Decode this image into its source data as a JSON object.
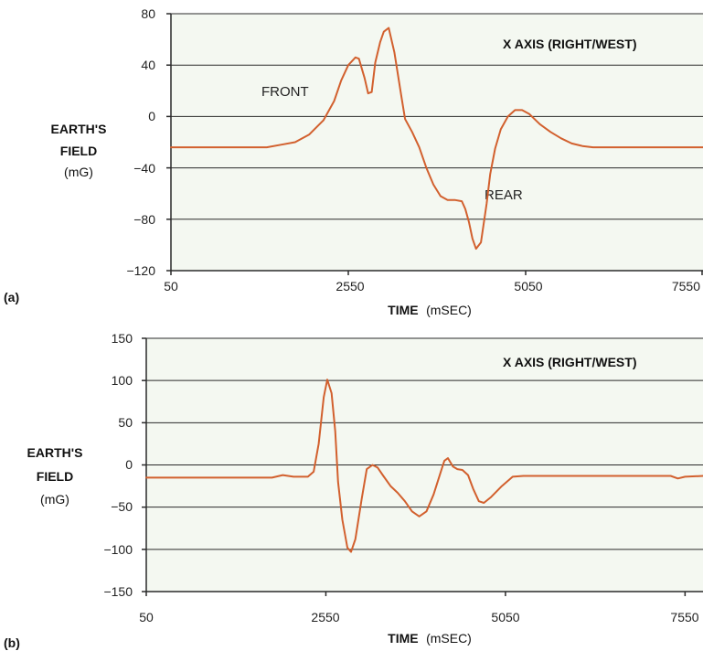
{
  "colors": {
    "trace": "#d2602e",
    "plot_bg": "#f4f8f1",
    "grid": "#2a2a2a"
  },
  "chart_data": [
    {
      "panel_label": "(a)",
      "type": "line",
      "title": "X AXIS (RIGHT/WEST)",
      "ylabel_lines": [
        "EARTH'S",
        "FIELD",
        "(mG)"
      ],
      "xlabel_bold": "TIME",
      "xlabel_unit": "(mSEC)",
      "xlim": [
        50,
        7550
      ],
      "ylim": [
        -120,
        80
      ],
      "xticks": [
        50,
        2550,
        5050,
        7550
      ],
      "xtick_labels": [
        "50",
        "2550",
        "5050",
        "7550"
      ],
      "yticks": [
        80,
        40,
        0,
        -40,
        -80,
        -120
      ],
      "ytick_labels": [
        "80",
        "40",
        "0",
        "−40",
        "−80",
        "−120"
      ],
      "grid": "horizontal",
      "annotations": [
        {
          "text": "FRONT",
          "x": 2040,
          "y": 18
        },
        {
          "text": "REAR",
          "x": 4370,
          "y": -62
        }
      ],
      "series": [
        {
          "points": [
            [
              50,
              -24
            ],
            [
              1400,
              -24
            ],
            [
              1600,
              -22
            ],
            [
              1800,
              -20
            ],
            [
              2000,
              -14
            ],
            [
              2200,
              -3
            ],
            [
              2350,
              12
            ],
            [
              2450,
              28
            ],
            [
              2550,
              40
            ],
            [
              2650,
              46
            ],
            [
              2700,
              45
            ],
            [
              2780,
              30
            ],
            [
              2830,
              18
            ],
            [
              2880,
              19
            ],
            [
              2930,
              42
            ],
            [
              3000,
              58
            ],
            [
              3050,
              66
            ],
            [
              3120,
              69
            ],
            [
              3200,
              50
            ],
            [
              3300,
              15
            ],
            [
              3350,
              -2
            ],
            [
              3450,
              -12
            ],
            [
              3550,
              -24
            ],
            [
              3650,
              -40
            ],
            [
              3750,
              -53
            ],
            [
              3850,
              -62
            ],
            [
              3950,
              -65
            ],
            [
              4050,
              -65
            ],
            [
              4150,
              -66
            ],
            [
              4200,
              -72
            ],
            [
              4250,
              -82
            ],
            [
              4300,
              -95
            ],
            [
              4350,
              -103
            ],
            [
              4420,
              -98
            ],
            [
              4500,
              -68
            ],
            [
              4550,
              -45
            ],
            [
              4620,
              -25
            ],
            [
              4700,
              -10
            ],
            [
              4800,
              0
            ],
            [
              4900,
              5
            ],
            [
              5000,
              5
            ],
            [
              5100,
              2
            ],
            [
              5250,
              -6
            ],
            [
              5400,
              -12
            ],
            [
              5550,
              -17
            ],
            [
              5700,
              -21
            ],
            [
              5850,
              -23
            ],
            [
              6000,
              -24
            ],
            [
              7550,
              -24
            ]
          ]
        }
      ]
    },
    {
      "panel_label": "(b)",
      "type": "line",
      "title": "X AXIS (RIGHT/WEST)",
      "ylabel_lines": [
        "EARTH'S",
        "FIELD",
        "(mG)"
      ],
      "xlabel_bold": "TIME",
      "xlabel_unit": "(mSEC)",
      "xlim": [
        50,
        7800
      ],
      "ylim": [
        -150,
        150
      ],
      "xticks": [
        50,
        2550,
        5050,
        7550
      ],
      "xtick_labels": [
        "50",
        "2550",
        "5050",
        "7550"
      ],
      "yticks": [
        150,
        100,
        50,
        0,
        -50,
        -100,
        -150
      ],
      "ytick_labels": [
        "150",
        "100",
        "50",
        "0",
        "−50",
        "−100",
        "−150"
      ],
      "grid": "horizontal",
      "series": [
        {
          "points": [
            [
              50,
              -15
            ],
            [
              1800,
              -15
            ],
            [
              1950,
              -12
            ],
            [
              2100,
              -14
            ],
            [
              2300,
              -14
            ],
            [
              2380,
              -8
            ],
            [
              2450,
              25
            ],
            [
              2520,
              80
            ],
            [
              2570,
              101
            ],
            [
              2630,
              85
            ],
            [
              2680,
              40
            ],
            [
              2720,
              -20
            ],
            [
              2780,
              -65
            ],
            [
              2850,
              -98
            ],
            [
              2900,
              -103
            ],
            [
              2960,
              -88
            ],
            [
              3050,
              -40
            ],
            [
              3120,
              -5
            ],
            [
              3200,
              0
            ],
            [
              3270,
              -3
            ],
            [
              3350,
              -13
            ],
            [
              3450,
              -25
            ],
            [
              3550,
              -33
            ],
            [
              3650,
              -43
            ],
            [
              3750,
              -55
            ],
            [
              3850,
              -61
            ],
            [
              3950,
              -55
            ],
            [
              4050,
              -35
            ],
            [
              4150,
              -8
            ],
            [
              4200,
              5
            ],
            [
              4250,
              8
            ],
            [
              4320,
              -2
            ],
            [
              4380,
              -5
            ],
            [
              4450,
              -6
            ],
            [
              4530,
              -12
            ],
            [
              4600,
              -28
            ],
            [
              4680,
              -43
            ],
            [
              4750,
              -45
            ],
            [
              4850,
              -38
            ],
            [
              5000,
              -25
            ],
            [
              5150,
              -14
            ],
            [
              5300,
              -13
            ],
            [
              6000,
              -13
            ],
            [
              7350,
              -13
            ],
            [
              7450,
              -16
            ],
            [
              7550,
              -14
            ],
            [
              7800,
              -13
            ]
          ]
        }
      ]
    }
  ]
}
